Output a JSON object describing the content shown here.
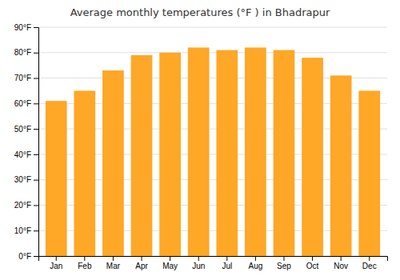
{
  "chart_data": {
    "type": "bar",
    "title": "Average monthly temperatures (°F ) in Bhadrapur",
    "categories": [
      "Jan",
      "Feb",
      "Mar",
      "Apr",
      "May",
      "Jun",
      "Jul",
      "Aug",
      "Sep",
      "Oct",
      "Nov",
      "Dec"
    ],
    "values": [
      61,
      65,
      73,
      79,
      80,
      82,
      81,
      82,
      81,
      78,
      71,
      65
    ],
    "color": "#FFA726",
    "ylim": [
      0,
      90
    ],
    "yticks": [
      {
        "value": 0,
        "label": "0°F"
      },
      {
        "value": 10,
        "label": "10°F"
      },
      {
        "value": 20,
        "label": "20°F"
      },
      {
        "value": 30,
        "label": "30°F"
      },
      {
        "value": 40,
        "label": "40°F"
      },
      {
        "value": 50,
        "label": "50°F"
      },
      {
        "value": 60,
        "label": "60°F"
      },
      {
        "value": 70,
        "label": "70°F"
      },
      {
        "value": 80,
        "label": "80°F"
      },
      {
        "value": 90,
        "label": "90°F"
      }
    ],
    "grid": true
  }
}
